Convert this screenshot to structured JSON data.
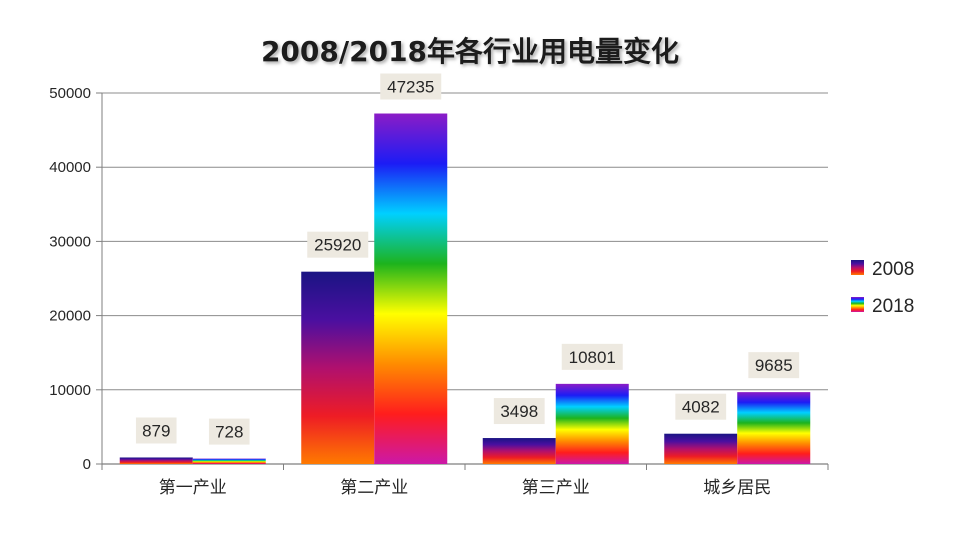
{
  "chart_data": {
    "type": "bar",
    "title": "2008/2018年各行业用电量变化",
    "categories": [
      "第一产业",
      "第二产业",
      "第三产业",
      "城乡居民"
    ],
    "series": [
      {
        "name": "2008",
        "values": [
          879,
          25920,
          3498,
          4082
        ]
      },
      {
        "name": "2018",
        "values": [
          728,
          47235,
          10801,
          9685
        ]
      }
    ],
    "xlabel": "",
    "ylabel": "",
    "ylim": [
      0,
      50000
    ],
    "yticks": [
      0,
      10000,
      20000,
      30000,
      40000,
      50000
    ],
    "grid": true,
    "legend": "right"
  },
  "colors": {
    "gridline": "#8c8c8c",
    "axis": "#7f7f7f",
    "label_bg": "#ede9e0",
    "text": "#262626",
    "s2008": [
      "#1a1483",
      "#4a0fa0",
      "#b0106e",
      "#ee1c25",
      "#ff7a00"
    ],
    "s2018": [
      "#8b1cc6",
      "#1c1cf5",
      "#00d0ff",
      "#1db31d",
      "#ffff00",
      "#ff8c00",
      "#ff1d1d",
      "#cc18a8"
    ]
  }
}
